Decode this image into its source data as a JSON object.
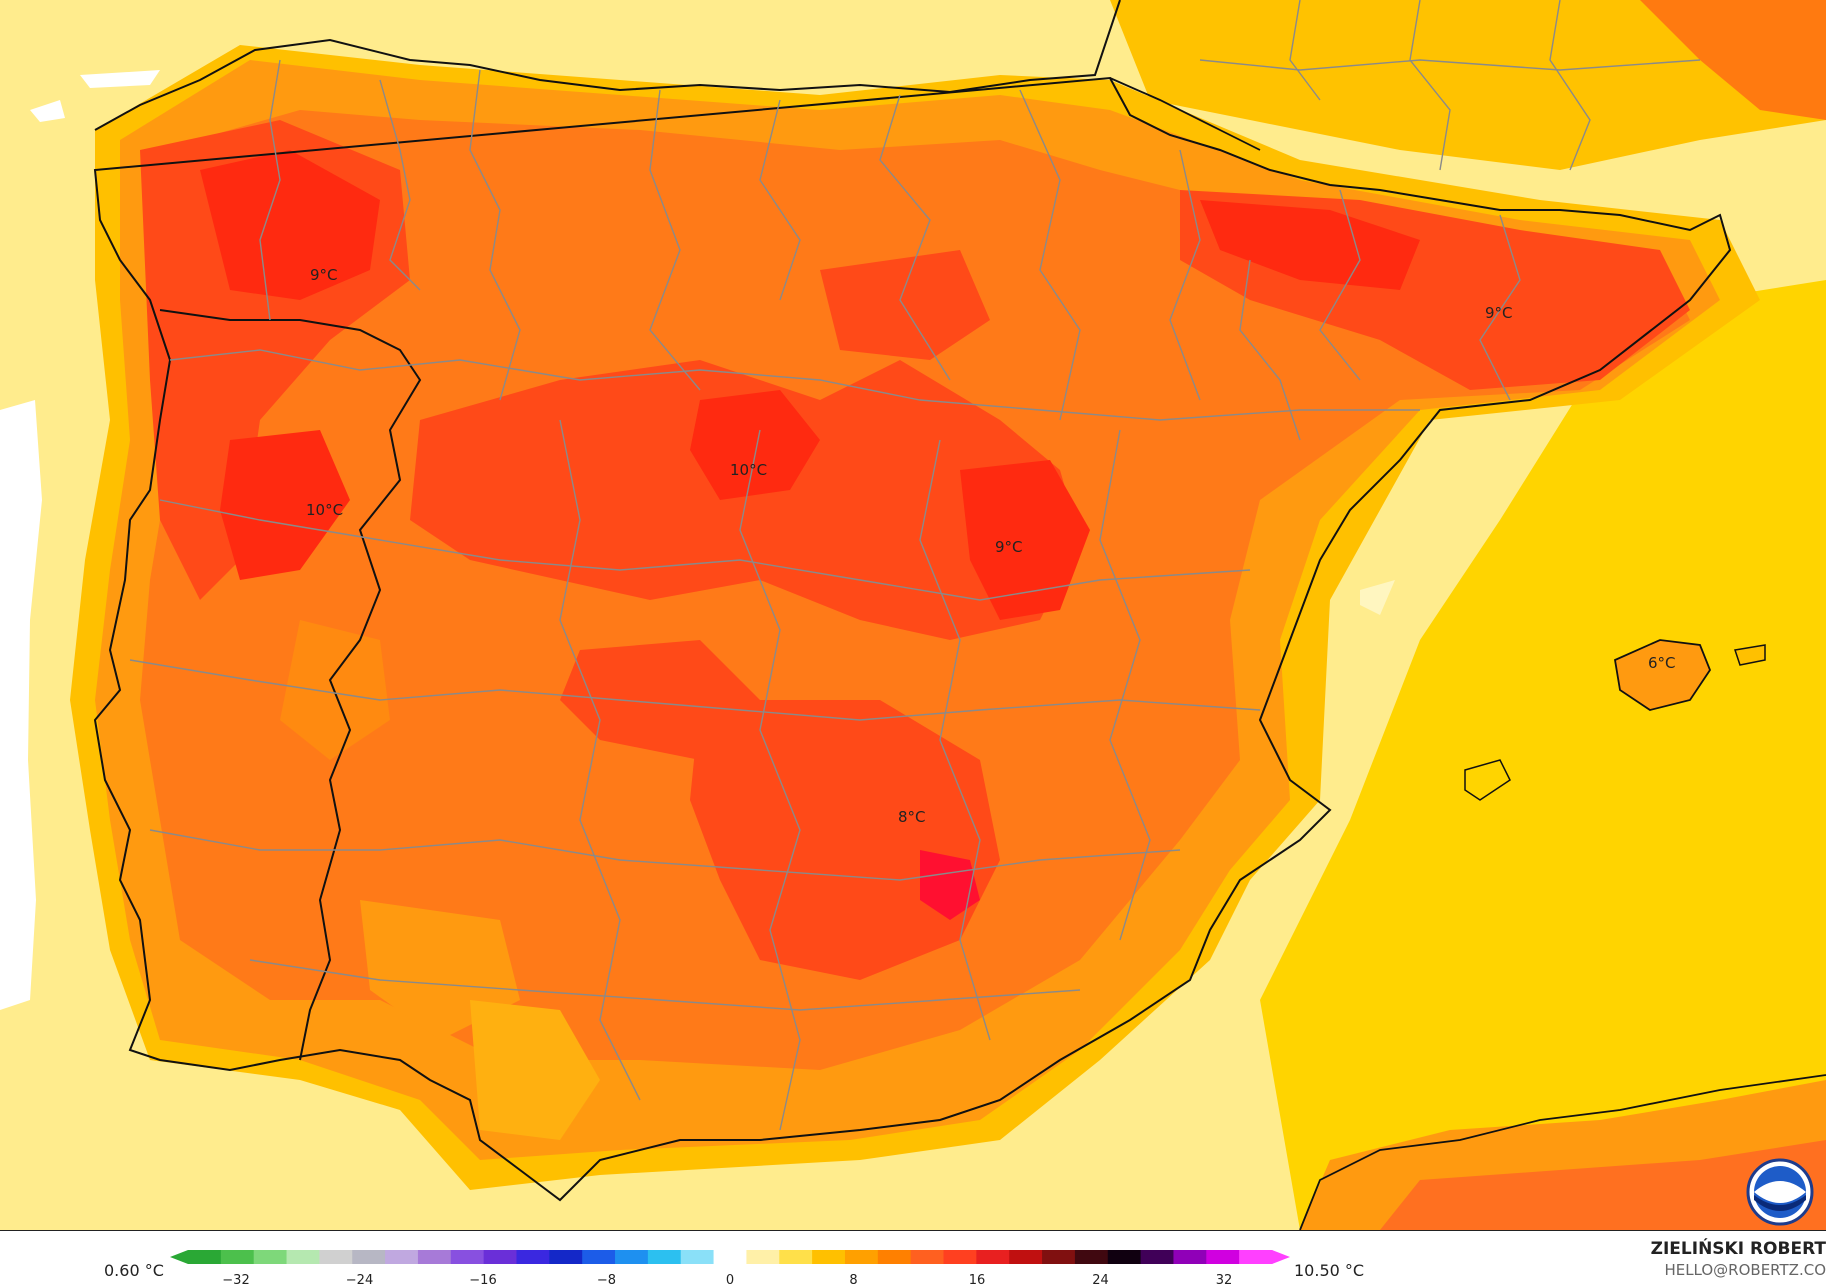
{
  "map": {
    "labels": [
      {
        "id": "galicia",
        "text": "9°C"
      },
      {
        "id": "portugal-north",
        "text": "10°C"
      },
      {
        "id": "castilla",
        "text": "10°C"
      },
      {
        "id": "aragon-south",
        "text": "9°C"
      },
      {
        "id": "catalonia",
        "text": "9°C"
      },
      {
        "id": "mallorca",
        "text": "6°C"
      },
      {
        "id": "murcia-interior",
        "text": "8°C"
      }
    ]
  },
  "legend": {
    "min_label": "0.60 °C",
    "max_label": "10.50 °C",
    "ticks": [
      "−32",
      "−24",
      "−16",
      "−8",
      "0",
      "8",
      "16",
      "24",
      "32"
    ],
    "colors": [
      "#2aa835",
      "#4cc04c",
      "#7ed87a",
      "#b5e8b0",
      "#d0d0d0",
      "#b7b7c4",
      "#c0a8e0",
      "#a77ad8",
      "#8850e0",
      "#6a2fd8",
      "#3a28e0",
      "#1428c8",
      "#1c5ce8",
      "#1e90f0",
      "#2cc0f0",
      "#8ae0f8",
      "#ffffff",
      "#fff0a8",
      "#ffe04a",
      "#ffc000",
      "#ffa000",
      "#ff8000",
      "#ff6020",
      "#ff4020",
      "#e82020",
      "#c01010",
      "#801010",
      "#400810",
      "#100010",
      "#400058",
      "#9000b8",
      "#d000e0",
      "#ff40ff"
    ]
  },
  "author": {
    "name": "ZIELIŃSKI ROBERT",
    "email": "HELLO@ROBERTZ.CO"
  }
}
